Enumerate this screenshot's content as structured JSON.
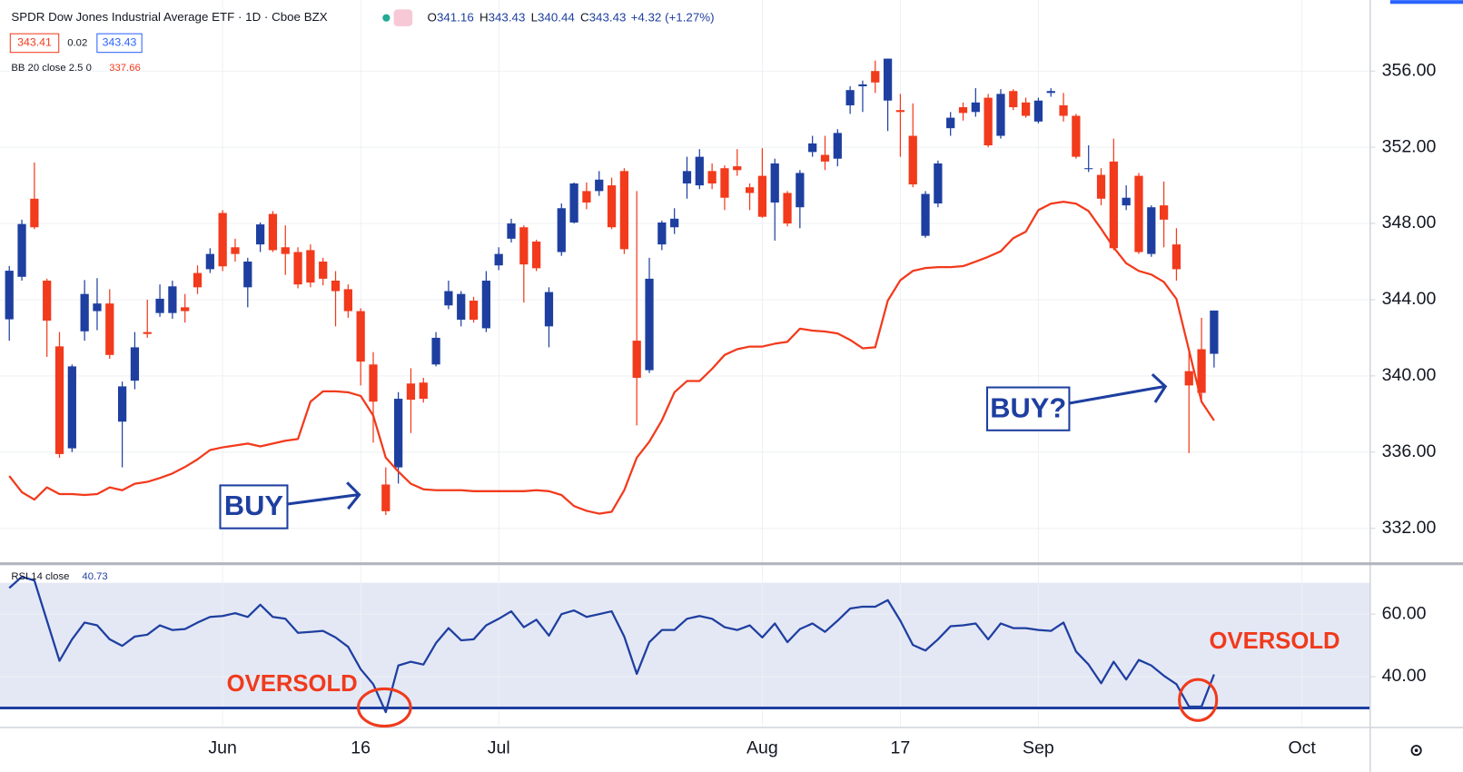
{
  "header": {
    "title": "SPDR Dow Jones Industrial Average ETF · 1D · Cboe BZX",
    "ohlc_labels": [
      "O",
      "H",
      "L",
      "C"
    ],
    "change": "+4.32 (+1.27%)",
    "bid": 343.41,
    "spread": 0.02,
    "ask": 343.43
  },
  "chart_data": [
    {
      "type": "candlestick",
      "up_color": "#1e3fa0",
      "down_color": "#f23a1c",
      "grid": true,
      "xlim": [
        -0.74,
        108.4
      ],
      "ylim": [
        330.19,
        359.72
      ],
      "yticks": [
        {
          "value": 332,
          "label": "332.00"
        },
        {
          "value": 336,
          "label": "336.00"
        },
        {
          "value": 340,
          "label": "340.00"
        },
        {
          "value": 344,
          "label": "344.00"
        },
        {
          "value": 348,
          "label": "348.00"
        },
        {
          "value": 352,
          "label": "352.00"
        },
        {
          "value": 356,
          "label": "356.00"
        }
      ],
      "open": [
        342.97,
        345.2,
        349.3,
        345.0,
        341.55,
        336.2,
        342.34,
        343.4,
        343.8,
        337.6,
        339.75,
        342.3,
        343.3,
        343.3,
        343.6,
        345.4,
        345.6,
        348.55,
        346.75,
        344.65,
        346.9,
        348.5,
        346.75,
        346.5,
        346.6,
        346.0,
        345.0,
        344.55,
        343.4,
        340.6,
        334.3,
        335.2,
        339.6,
        339.65,
        340.6,
        343.7,
        342.95,
        343.95,
        342.5,
        345.8,
        347.2,
        347.8,
        347.05,
        342.6,
        346.5,
        348.05,
        349.7,
        349.7,
        350.0,
        350.75,
        341.85,
        340.3,
        346.9,
        347.8,
        350.1,
        350.0,
        350.75,
        350.9,
        351.0,
        349.9,
        350.5,
        349.1,
        349.6,
        348.85,
        351.75,
        351.6,
        351.4,
        354.2,
        355.2,
        356.0,
        354.45,
        353.95,
        352.6,
        347.35,
        349.05,
        353.0,
        354.1,
        353.85,
        354.6,
        352.6,
        354.95,
        354.35,
        353.35,
        354.85,
        354.2,
        353.65,
        350.85,
        350.55,
        351.25,
        348.95,
        350.5,
        346.4,
        348.95,
        346.9,
        340.25,
        341.4,
        341.16
      ],
      "high": [
        345.77,
        348.2,
        351.2,
        345.1,
        342.3,
        340.6,
        345.03,
        345.13,
        344.55,
        339.7,
        342.3,
        344.0,
        344.8,
        345.0,
        344.3,
        345.8,
        346.7,
        348.7,
        347.2,
        346.2,
        348.05,
        348.65,
        347.9,
        346.75,
        346.9,
        346.2,
        345.5,
        344.8,
        343.55,
        341.25,
        335.2,
        339.15,
        340.4,
        339.9,
        342.3,
        345.0,
        344.45,
        344.15,
        345.5,
        346.75,
        348.25,
        347.9,
        347.15,
        344.65,
        349.05,
        350.15,
        350.15,
        350.75,
        350.4,
        350.9,
        349.7,
        346.2,
        348.15,
        348.8,
        351.5,
        351.9,
        351.15,
        351.05,
        351.9,
        350.1,
        351.95,
        351.4,
        349.7,
        350.8,
        352.6,
        352.6,
        352.95,
        355.2,
        355.5,
        356.55,
        356.65,
        354.8,
        354.3,
        349.7,
        351.3,
        353.85,
        354.35,
        355.1,
        354.8,
        355.05,
        355.05,
        354.6,
        354.6,
        355.1,
        354.85,
        353.75,
        352.1,
        350.9,
        352.45,
        350.0,
        350.65,
        348.95,
        350.2,
        347.75,
        341.4,
        343.05,
        343.43
      ],
      "low": [
        341.85,
        345.0,
        347.7,
        341.0,
        335.7,
        336.0,
        341.85,
        342.4,
        340.9,
        335.2,
        339.3,
        342.0,
        343.1,
        343.0,
        342.8,
        344.3,
        345.4,
        345.5,
        346.0,
        343.6,
        346.5,
        346.5,
        345.3,
        344.6,
        344.65,
        344.75,
        342.6,
        343.05,
        339.5,
        336.5,
        332.7,
        334.35,
        337.0,
        338.6,
        340.5,
        343.5,
        342.6,
        342.8,
        342.3,
        345.55,
        347.0,
        343.85,
        345.5,
        341.5,
        346.3,
        348.0,
        348.75,
        349.45,
        347.7,
        346.4,
        337.4,
        340.15,
        346.6,
        347.45,
        349.3,
        349.8,
        349.8,
        348.7,
        350.5,
        348.7,
        348.3,
        347.1,
        347.85,
        347.75,
        351.5,
        350.8,
        351.0,
        353.75,
        353.85,
        354.85,
        352.85,
        351.5,
        349.9,
        347.25,
        348.85,
        352.6,
        353.4,
        353.6,
        352.0,
        352.45,
        353.95,
        353.55,
        353.25,
        354.65,
        353.35,
        351.4,
        350.7,
        348.95,
        346.6,
        348.7,
        346.4,
        346.25,
        346.75,
        345.0,
        335.95,
        338.7,
        340.44
      ],
      "close": [
        345.52,
        347.97,
        347.8,
        342.9,
        335.9,
        340.5,
        344.3,
        343.8,
        341.1,
        339.45,
        341.5,
        342.2,
        344.05,
        344.7,
        343.4,
        344.65,
        346.4,
        345.75,
        346.4,
        346.0,
        347.95,
        346.6,
        346.4,
        344.8,
        344.9,
        345.1,
        344.45,
        343.4,
        340.75,
        338.65,
        332.9,
        338.8,
        338.75,
        338.8,
        342.0,
        344.45,
        344.3,
        342.95,
        345.0,
        346.4,
        348.0,
        345.85,
        345.65,
        344.4,
        348.8,
        350.1,
        349.1,
        350.3,
        347.8,
        346.65,
        339.9,
        345.1,
        348.05,
        348.25,
        350.75,
        351.5,
        350.1,
        349.35,
        350.8,
        349.6,
        348.35,
        351.15,
        348.0,
        350.65,
        352.2,
        351.25,
        352.75,
        355.0,
        355.3,
        355.4,
        356.65,
        353.85,
        350.05,
        349.55,
        351.15,
        353.55,
        353.8,
        354.35,
        352.1,
        354.8,
        354.1,
        353.65,
        354.45,
        354.95,
        353.65,
        351.5,
        350.9,
        349.3,
        346.7,
        349.35,
        346.5,
        348.85,
        348.2,
        345.6,
        339.5,
        339.11,
        343.43
      ],
      "series": [
        {
          "name": "BB 20 close 2.5 0",
          "color": "#f23a1c",
          "values": [
            334.75,
            333.9,
            333.51,
            334.15,
            333.8,
            333.8,
            333.75,
            333.8,
            334.15,
            334.0,
            334.34,
            334.44,
            334.64,
            334.88,
            335.22,
            335.62,
            336.11,
            336.25,
            336.35,
            336.45,
            336.3,
            336.45,
            336.6,
            336.69,
            338.65,
            339.19,
            339.19,
            339.14,
            338.95,
            337.92,
            335.71,
            334.98,
            334.34,
            334.05,
            334.0,
            334.0,
            334.0,
            333.95,
            333.95,
            333.95,
            333.95,
            333.95,
            334.0,
            333.95,
            333.75,
            333.17,
            332.92,
            332.77,
            332.87,
            334.0,
            335.71,
            336.55,
            337.67,
            339.14,
            339.73,
            339.73,
            340.37,
            341.1,
            341.4,
            341.54,
            341.54,
            341.69,
            341.79,
            342.48,
            342.38,
            342.33,
            342.23,
            341.89,
            341.45,
            341.5,
            343.95,
            345.02,
            345.51,
            345.66,
            345.71,
            345.71,
            345.76,
            346.0,
            346.25,
            346.54,
            347.23,
            347.57,
            348.7,
            349.04,
            349.14,
            349.04,
            348.65,
            347.72,
            346.74,
            345.91,
            345.51,
            345.32,
            344.93,
            344.04,
            341.35,
            338.65,
            337.66
          ]
        }
      ],
      "annotations": [
        "BUY",
        "BUY?"
      ]
    },
    {
      "type": "line",
      "grid": true,
      "xlim": [
        -0.74,
        108.4
      ],
      "ylim": [
        24.2,
        75.5
      ],
      "yticks": [
        {
          "value": 40,
          "label": "40.00"
        },
        {
          "value": 60,
          "label": "60.00"
        }
      ],
      "xticks": [
        {
          "value": 17,
          "label": "Jun"
        },
        {
          "value": 28,
          "label": "16"
        },
        {
          "value": 39,
          "label": "Jul"
        },
        {
          "value": 60,
          "label": "Aug"
        },
        {
          "value": 71,
          "label": "17"
        },
        {
          "value": 82,
          "label": "Sep"
        },
        {
          "value": 103,
          "label": "Oct"
        }
      ],
      "band": [
        30,
        70
      ],
      "band_color": "#e4e8f5",
      "series": [
        {
          "name": "RSI 14 close",
          "color": "#1e3fa0",
          "values": [
            68.36,
            71.94,
            70.75,
            57.91,
            45.07,
            51.94,
            57.31,
            56.42,
            51.94,
            49.85,
            52.84,
            53.43,
            56.42,
            54.93,
            55.22,
            57.31,
            59.1,
            59.4,
            60.3,
            59.1,
            62.99,
            59.1,
            58.51,
            54.03,
            54.33,
            54.63,
            52.54,
            49.55,
            42.39,
            37.61,
            28.66,
            43.58,
            44.78,
            43.88,
            50.75,
            55.52,
            51.64,
            51.94,
            56.42,
            58.51,
            60.9,
            55.82,
            58.21,
            53.13,
            60.0,
            61.19,
            59.1,
            60.0,
            60.9,
            52.84,
            40.9,
            51.04,
            54.93,
            54.93,
            58.51,
            59.4,
            58.51,
            55.82,
            54.93,
            56.42,
            52.54,
            57.01,
            51.04,
            55.22,
            57.01,
            54.33,
            57.91,
            61.79,
            62.39,
            62.39,
            64.48,
            57.91,
            50.15,
            48.36,
            51.94,
            56.12,
            56.42,
            57.01,
            51.94,
            57.01,
            55.52,
            55.52,
            54.93,
            54.63,
            57.31,
            48.06,
            43.88,
            37.91,
            44.78,
            39.1,
            45.37,
            43.58,
            40.3,
            37.61,
            30.45,
            30.45,
            40.73
          ]
        }
      ],
      "annotations": [
        "OVERSOLD",
        "OVERSOLD"
      ]
    }
  ]
}
